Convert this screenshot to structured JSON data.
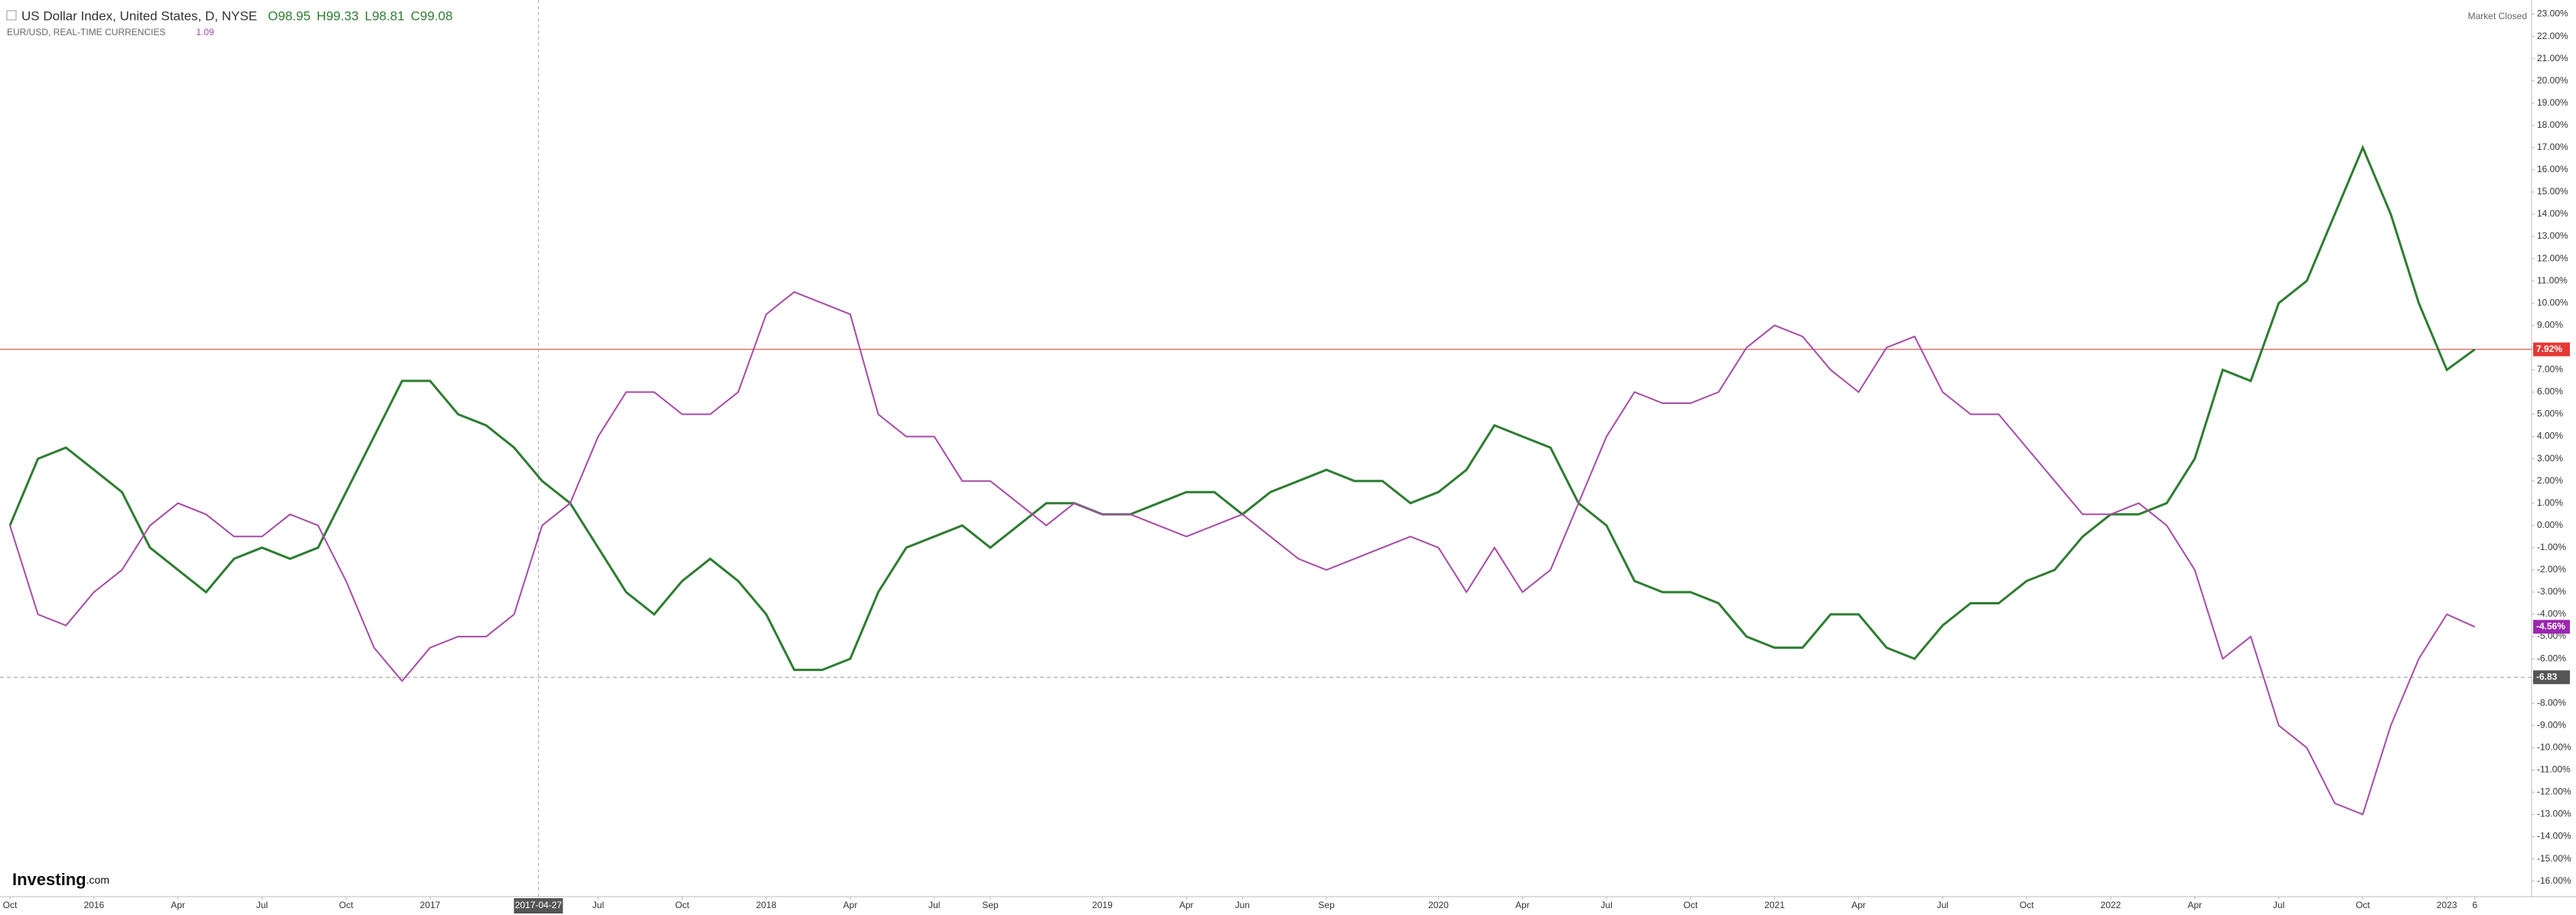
{
  "chart_data": {
    "type": "line",
    "header": {
      "title": "US Dollar Index, United States, D, NYSE",
      "ohlc": [
        "O98.95",
        "H99.33",
        "L98.81",
        "C99.08"
      ],
      "status": "Market Closed",
      "watermark": [
        "Investing",
        ".com"
      ]
    },
    "categories": [
      "Oct",
      null,
      null,
      "2016",
      null,
      null,
      "Apr",
      null,
      null,
      "Jul",
      null,
      null,
      "Oct",
      null,
      null,
      "2017",
      null,
      null,
      null,
      null,
      null,
      "Jul",
      null,
      null,
      "Oct",
      null,
      null,
      "2018",
      null,
      null,
      "Apr",
      null,
      null,
      "Jul",
      null,
      "Sep",
      null,
      null,
      null,
      "2019",
      null,
      null,
      "Apr",
      null,
      "Jun",
      null,
      null,
      "Sep",
      null,
      null,
      null,
      "2020",
      null,
      null,
      "Apr",
      null,
      null,
      "Jul",
      null,
      null,
      "Oct",
      null,
      null,
      "2021",
      null,
      null,
      "Apr",
      null,
      null,
      "Jul",
      null,
      null,
      "Oct",
      null,
      null,
      "2022",
      null,
      null,
      "Apr",
      null,
      null,
      "Jul",
      null,
      null,
      "Oct",
      null,
      null,
      "2023",
      "6"
    ],
    "series": [
      {
        "name": "US Dollar Index, United States, D, NYSE",
        "color": "#2f7d32",
        "values": [
          0,
          3,
          3.5,
          2.5,
          1.5,
          -1,
          -2,
          -3,
          -1.5,
          -1,
          -1.5,
          -1,
          1.5,
          4,
          6.5,
          6.5,
          5,
          4.5,
          3.5,
          2,
          1,
          -1,
          -3,
          -4,
          -2.5,
          -1.5,
          -2.5,
          -4,
          -6.5,
          -6.5,
          -6,
          -3,
          -1,
          -0.5,
          0,
          -1,
          0,
          1,
          1,
          0.5,
          0.5,
          1,
          1.5,
          1.5,
          0.5,
          1.5,
          2,
          2.5,
          2,
          2,
          1,
          1.5,
          2.5,
          4.5,
          4,
          3.5,
          1,
          0,
          -2.5,
          -3,
          -3,
          -3.5,
          -5,
          -5.5,
          -5.5,
          -4,
          -4,
          -5.5,
          -6,
          -4.5,
          -3.5,
          -3.5,
          -2.5,
          -2,
          -0.5,
          0.5,
          0.5,
          1,
          3,
          7,
          6.5,
          10,
          11,
          14,
          17,
          14,
          10,
          7,
          7.92
        ]
      },
      {
        "name": "EUR/USD, REAL-TIME CURRENCIES",
        "color": "#a64ca6",
        "last": 1.09,
        "values": [
          0,
          -4,
          -4.5,
          -3,
          -2,
          0,
          1,
          0.5,
          -0.5,
          -0.5,
          0.5,
          0,
          -2.5,
          -5.5,
          -7,
          -5.5,
          -5,
          -5,
          -4,
          0,
          1,
          4,
          6,
          6,
          5,
          5,
          6,
          9.5,
          10.5,
          10,
          9.5,
          5,
          4,
          4,
          2,
          2,
          1,
          0,
          1,
          0.5,
          0.5,
          0,
          -0.5,
          0,
          0.5,
          -0.5,
          -1.5,
          -2,
          -1.5,
          -1,
          -0.5,
          -1,
          -3,
          -1,
          -3,
          -2,
          1,
          4,
          6,
          5.5,
          5.5,
          6,
          8,
          9,
          8.5,
          7,
          6,
          8,
          8.5,
          6,
          5,
          5,
          3.5,
          2,
          0.5,
          0.5,
          1,
          0,
          -2,
          -6,
          -5,
          -9,
          -10,
          -12.5,
          -13,
          -9,
          -6,
          -4,
          -4.56
        ]
      }
    ],
    "ylim": [
      -16.7,
      23.5
    ],
    "yticks": [
      {
        "value": 23,
        "label": "23.00%"
      },
      {
        "value": 22,
        "label": "22.00%"
      },
      {
        "value": 21,
        "label": "21.00%"
      },
      {
        "value": 20,
        "label": "20.00%"
      },
      {
        "value": 19,
        "label": "19.00%"
      },
      {
        "value": 18,
        "label": "18.00%"
      },
      {
        "value": 17,
        "label": "17.00%"
      },
      {
        "value": 16,
        "label": "16.00%"
      },
      {
        "value": 15,
        "label": "15.00%"
      },
      {
        "value": 14,
        "label": "14.00%"
      },
      {
        "value": 13,
        "label": "13.00%"
      },
      {
        "value": 12,
        "label": "12.00%"
      },
      {
        "value": 11,
        "label": "11.00%"
      },
      {
        "value": 10,
        "label": "10.00%"
      },
      {
        "value": 9,
        "label": "9.00%"
      },
      {
        "value": 8,
        "label": "8.00%"
      },
      {
        "value": 7,
        "label": "7.00%"
      },
      {
        "value": 6,
        "label": "6.00%"
      },
      {
        "value": 5,
        "label": "5.00%"
      },
      {
        "value": 4,
        "label": "4.00%"
      },
      {
        "value": 3,
        "label": "3.00%"
      },
      {
        "value": 2,
        "label": "2.00%"
      },
      {
        "value": 1,
        "label": "1.00%"
      },
      {
        "value": 0,
        "label": "0.00%"
      },
      {
        "value": -1,
        "label": "-1.00%"
      },
      {
        "value": -2,
        "label": "-2.00%"
      },
      {
        "value": -3,
        "label": "-3.00%"
      },
      {
        "value": -4,
        "label": "-4.00%"
      },
      {
        "value": -5,
        "label": "-5.00%"
      },
      {
        "value": -6,
        "label": "-6.00%"
      },
      {
        "value": -7,
        "label": "-7.00%"
      },
      {
        "value": -8,
        "label": "-8.00%"
      },
      {
        "value": -9,
        "label": "-9.00%"
      },
      {
        "value": -10,
        "label": "-10.00%"
      },
      {
        "value": -11,
        "label": "-11.00%"
      },
      {
        "value": -12,
        "label": "-12.00%"
      },
      {
        "value": -13,
        "label": "-13.00%"
      },
      {
        "value": -14,
        "label": "-14.00%"
      },
      {
        "value": -15,
        "label": "-15.00%"
      },
      {
        "value": -16,
        "label": "-16.00%"
      }
    ],
    "price_lines": [
      {
        "value": 7.92,
        "label": "7.92%",
        "color": "#e53935",
        "line": "solid"
      },
      {
        "value": -4.56,
        "label": "-4.56%",
        "color": "#9c27b0",
        "line": "none"
      },
      {
        "value": -6.83,
        "color": "#555555",
        "line": "dashed"
      }
    ],
    "crosshair": "2017-04-27",
    "grid": false
  }
}
